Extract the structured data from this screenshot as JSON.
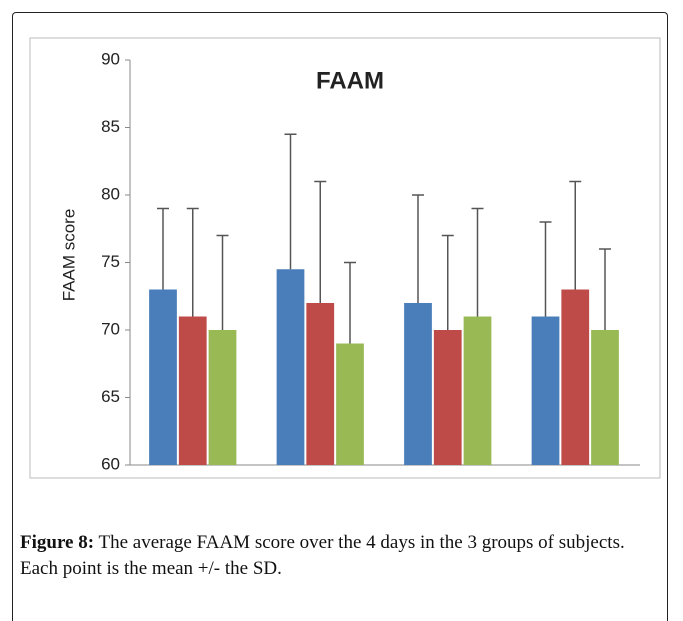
{
  "chart_data": {
    "type": "bar",
    "title": "FAAM",
    "y_label": "FAAM score",
    "categories": [
      null,
      null,
      null,
      null
    ],
    "series": [
      {
        "color": "#4a7ebb",
        "values": [
          73,
          74.5,
          72,
          71
        ],
        "errors": [
          6,
          10,
          8,
          7
        ]
      },
      {
        "color": "#be4b48",
        "values": [
          71,
          72,
          70,
          73
        ],
        "errors": [
          8,
          9,
          7,
          8
        ]
      },
      {
        "color": "#98b954",
        "values": [
          70,
          69,
          71,
          70
        ],
        "errors": [
          7,
          6,
          8,
          6
        ]
      }
    ],
    "ylim": [
      60,
      90
    ],
    "yticks": [
      60,
      65,
      70,
      75,
      80,
      85,
      90
    ],
    "grid": false
  },
  "caption": {
    "label": "Figure 8:",
    "text": "The average FAAM score over the 4 days in the 3 groups of subjects. Each point is the mean +/- the SD."
  }
}
